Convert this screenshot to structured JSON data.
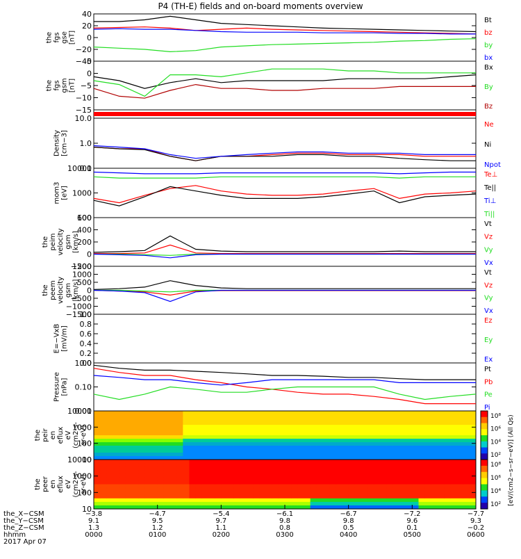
{
  "title": "P4 (TH-E) fields and on-board moments overview",
  "colors": {
    "black": "#000000",
    "red": "#ff0000",
    "darkred": "#b00000",
    "green": "#22dd22",
    "blue": "#0000ff"
  },
  "chart_data": [
    {
      "type": "line",
      "ylabel": [
        "the",
        "fgs",
        "gse",
        "[nT]"
      ],
      "ylim": [
        -40,
        40
      ],
      "yticks": [
        "40",
        "20",
        "0",
        "−20",
        "−40"
      ],
      "series": [
        {
          "name": "Bt",
          "color": "black",
          "values": [
            27,
            27,
            30,
            36,
            30,
            24,
            22,
            20,
            18,
            16,
            15,
            14,
            13,
            12,
            11,
            10
          ]
        },
        {
          "name": "bz",
          "color": "red",
          "values": [
            16,
            17,
            18,
            16,
            12,
            14,
            16,
            14,
            13,
            12,
            11,
            10,
            9,
            8,
            7,
            6
          ]
        },
        {
          "name": "by",
          "color": "green",
          "values": [
            -16,
            -18,
            -20,
            -24,
            -22,
            -16,
            -14,
            -12,
            -11,
            -10,
            -9,
            -8,
            -6,
            -5,
            -3,
            -2
          ]
        },
        {
          "name": "bx",
          "color": "blue",
          "values": [
            14,
            15,
            14,
            14,
            12,
            10,
            9,
            9,
            9,
            8,
            8,
            8,
            7,
            7,
            6,
            6
          ]
        }
      ]
    },
    {
      "type": "line",
      "ylabel": [
        "the",
        "fgs",
        "gsm",
        "[nT]"
      ],
      "ylim": [
        -17,
        8
      ],
      "yticks": [
        "5",
        "0",
        "−5",
        "−10",
        "−15"
      ],
      "series": [
        {
          "name": "Bx",
          "color": "black",
          "values": [
            0,
            -2,
            -6,
            -3,
            -1,
            -3,
            -2,
            -2,
            -2,
            -2,
            -1,
            -1,
            -1,
            -1,
            0,
            1
          ]
        },
        {
          "name": "By",
          "color": "green",
          "values": [
            -2,
            -4,
            -10,
            1,
            1,
            0,
            2,
            4,
            4,
            4,
            3,
            3,
            2,
            2,
            2,
            2
          ]
        },
        {
          "name": "Bz",
          "color": "darkred",
          "values": [
            -6,
            -10,
            -11,
            -7,
            -4,
            -6,
            -6,
            -7,
            -7,
            -6,
            -6,
            -6,
            -5,
            -5,
            -5,
            -5
          ]
        }
      ]
    },
    {
      "type": "bar",
      "ylabel": [],
      "note": "status bar"
    },
    {
      "type": "line",
      "scale": "log",
      "ylabel": [
        "Density",
        "[cm−3]"
      ],
      "ylim": [
        0.1,
        10
      ],
      "yticks": [
        "10.0",
        "1.0",
        "0.1"
      ],
      "series": [
        {
          "name": "Ne",
          "color": "red",
          "values": [
            0.7,
            0.6,
            0.6,
            0.3,
            0.2,
            0.3,
            0.3,
            0.35,
            0.4,
            0.4,
            0.35,
            0.35,
            0.35,
            0.3,
            0.3,
            0.3
          ]
        },
        {
          "name": "Ni",
          "color": "black",
          "values": [
            0.7,
            0.6,
            0.55,
            0.3,
            0.2,
            0.3,
            0.3,
            0.3,
            0.35,
            0.35,
            0.3,
            0.3,
            0.25,
            0.22,
            0.2,
            0.2
          ]
        },
        {
          "name": "Npot",
          "color": "blue",
          "values": [
            0.8,
            0.7,
            0.6,
            0.35,
            0.25,
            0.3,
            0.35,
            0.4,
            0.45,
            0.45,
            0.4,
            0.4,
            0.4,
            0.35,
            0.35,
            0.35
          ]
        }
      ]
    },
    {
      "type": "line",
      "scale": "log",
      "ylabel": [
        "mom3",
        "[eV]"
      ],
      "ylim": [
        100,
        10000
      ],
      "yticks": [
        "10000",
        "1000",
        "100"
      ],
      "series": [
        {
          "name": "Te⊥",
          "color": "red",
          "values": [
            600,
            400,
            800,
            1500,
            2000,
            1200,
            900,
            800,
            800,
            900,
            1200,
            1500,
            600,
            900,
            1000,
            1200
          ]
        },
        {
          "name": "Te||",
          "color": "black",
          "values": [
            500,
            300,
            700,
            1800,
            1200,
            800,
            600,
            600,
            600,
            700,
            900,
            1200,
            400,
            700,
            800,
            900
          ]
        },
        {
          "name": "Ti⊥",
          "color": "blue",
          "values": [
            7000,
            6500,
            6000,
            6000,
            6000,
            6500,
            6500,
            6500,
            6500,
            6500,
            6500,
            6500,
            6000,
            6500,
            7000,
            7000
          ]
        },
        {
          "name": "Ti||",
          "color": "green",
          "values": [
            4500,
            4000,
            4000,
            4000,
            4000,
            4500,
            4500,
            4500,
            4500,
            4500,
            4500,
            4500,
            4000,
            4500,
            4500,
            4500
          ]
        }
      ]
    },
    {
      "type": "line",
      "ylabel": [
        "the",
        "peim",
        "velocity",
        "gsm",
        "[km/s]"
      ],
      "ylim": [
        -200,
        600
      ],
      "yticks": [
        "600",
        "400",
        "200",
        "0",
        "−200"
      ],
      "series": [
        {
          "name": "Vt",
          "color": "black",
          "values": [
            30,
            40,
            60,
            300,
            80,
            50,
            40,
            40,
            40,
            40,
            40,
            40,
            50,
            40,
            40,
            40
          ]
        },
        {
          "name": "Vz",
          "color": "red",
          "values": [
            10,
            10,
            20,
            150,
            20,
            10,
            10,
            10,
            10,
            10,
            10,
            10,
            10,
            10,
            10,
            10
          ]
        },
        {
          "name": "Vy",
          "color": "green",
          "values": [
            0,
            0,
            -10,
            -20,
            0,
            0,
            0,
            0,
            0,
            0,
            0,
            0,
            0,
            0,
            0,
            0
          ]
        },
        {
          "name": "Vx",
          "color": "blue",
          "values": [
            0,
            -10,
            -20,
            -60,
            -10,
            0,
            0,
            0,
            0,
            0,
            0,
            0,
            0,
            0,
            0,
            0
          ]
        }
      ]
    },
    {
      "type": "line",
      "ylabel": [
        "the",
        "peem",
        "velocity",
        "gsm",
        "[km/s]"
      ],
      "ylim": [
        -1500,
        1500
      ],
      "yticks": [
        "1500",
        "1000",
        "500",
        "0",
        "−500",
        "−1000",
        "−1500"
      ],
      "series": [
        {
          "name": "Vt",
          "color": "black",
          "values": [
            50,
            100,
            200,
            600,
            300,
            150,
            100,
            100,
            100,
            100,
            100,
            100,
            100,
            100,
            100,
            100
          ]
        },
        {
          "name": "Vz",
          "color": "red",
          "values": [
            0,
            -50,
            -100,
            -300,
            -50,
            -20,
            -20,
            -20,
            -20,
            -20,
            -20,
            -20,
            -20,
            -20,
            -20,
            -20
          ]
        },
        {
          "name": "Vy",
          "color": "green",
          "values": [
            0,
            0,
            -50,
            -100,
            0,
            0,
            0,
            0,
            0,
            0,
            0,
            0,
            0,
            0,
            0,
            0
          ]
        },
        {
          "name": "Vx",
          "color": "blue",
          "values": [
            0,
            -50,
            -150,
            -700,
            -100,
            0,
            0,
            0,
            0,
            0,
            0,
            0,
            0,
            0,
            0,
            0
          ]
        }
      ]
    },
    {
      "type": "line",
      "ylabel": [
        "E=−VxB",
        "[mV/m]"
      ],
      "ylim": [
        0,
        1
      ],
      "yticks": [
        "1.0",
        "0.8",
        "0.6",
        "0.4",
        "0.2",
        "0.0"
      ],
      "series": [
        {
          "name": "Ez",
          "color": "red",
          "values": []
        },
        {
          "name": "Ey",
          "color": "green",
          "values": []
        },
        {
          "name": "Ex",
          "color": "blue",
          "values": []
        }
      ]
    },
    {
      "type": "line",
      "scale": "log",
      "ylabel": [
        "Pressure",
        "[nPa]"
      ],
      "ylim": [
        0.01,
        1
      ],
      "yticks": [
        "1.00",
        "0.10",
        "0.01"
      ],
      "series": [
        {
          "name": "Pt",
          "color": "black",
          "values": [
            0.8,
            0.6,
            0.5,
            0.5,
            0.45,
            0.4,
            0.35,
            0.3,
            0.3,
            0.28,
            0.25,
            0.25,
            0.22,
            0.2,
            0.2,
            0.2
          ]
        },
        {
          "name": "Pb",
          "color": "red",
          "values": [
            0.6,
            0.4,
            0.3,
            0.3,
            0.2,
            0.15,
            0.1,
            0.08,
            0.06,
            0.05,
            0.05,
            0.04,
            0.03,
            0.02,
            0.02,
            0.02
          ]
        },
        {
          "name": "Pe",
          "color": "green",
          "values": [
            0.05,
            0.03,
            0.05,
            0.1,
            0.08,
            0.06,
            0.06,
            0.08,
            0.1,
            0.1,
            0.1,
            0.1,
            0.05,
            0.03,
            0.04,
            0.05
          ]
        },
        {
          "name": "Pi",
          "color": "blue",
          "values": [
            0.3,
            0.25,
            0.2,
            0.2,
            0.15,
            0.12,
            0.15,
            0.2,
            0.2,
            0.2,
            0.2,
            0.2,
            0.15,
            0.15,
            0.15,
            0.15
          ]
        }
      ]
    },
    {
      "type": "heatmap",
      "ylabel": [
        "the",
        "peir",
        "en",
        "eflux",
        "eV",
        "(cm2-s-",
        "sr-eV)"
      ],
      "ylim": [
        10,
        10000
      ],
      "yticks": [
        "10000",
        "1000",
        "100",
        "10"
      ]
    },
    {
      "type": "heatmap",
      "ylabel": [
        "the",
        "peer",
        "en",
        "eflux",
        "eV",
        "(cm2-s-",
        "sr-eV)"
      ],
      "ylim": [
        10,
        10000
      ],
      "yticks": [
        "10000",
        "1000",
        "100",
        "10"
      ]
    }
  ],
  "colorbar": {
    "label": "[eV/(cm2−s−sr−eV)] (All Qs)",
    "ticks_top": [
      "10⁸",
      "10⁶",
      "10⁴",
      "10²"
    ],
    "ticks_bottom": [
      "10⁸",
      "10⁶",
      "10⁴",
      "10²"
    ]
  },
  "xaxis": {
    "row_labels": [
      "the_X−CSM",
      "the_Y−CSM",
      "the_Z−CSM",
      "hhmm",
      "2017 Apr 07"
    ],
    "columns": [
      {
        "x": "−3.8",
        "y": "9.1",
        "z": "1.3",
        "t": "0000"
      },
      {
        "x": "−4.7",
        "y": "9.5",
        "z": "1.2",
        "t": "0100"
      },
      {
        "x": "−5.4",
        "y": "9.7",
        "z": "1.1",
        "t": "0200"
      },
      {
        "x": "−6.1",
        "y": "9.8",
        "z": "0.8",
        "t": "0300"
      },
      {
        "x": "−6.7",
        "y": "9.8",
        "z": "0.5",
        "t": "0400"
      },
      {
        "x": "−7.2",
        "y": "9.6",
        "z": "0.1",
        "t": "0500"
      },
      {
        "x": "−7.7",
        "y": "9.3",
        "z": "−0.2",
        "t": "0600"
      }
    ]
  }
}
